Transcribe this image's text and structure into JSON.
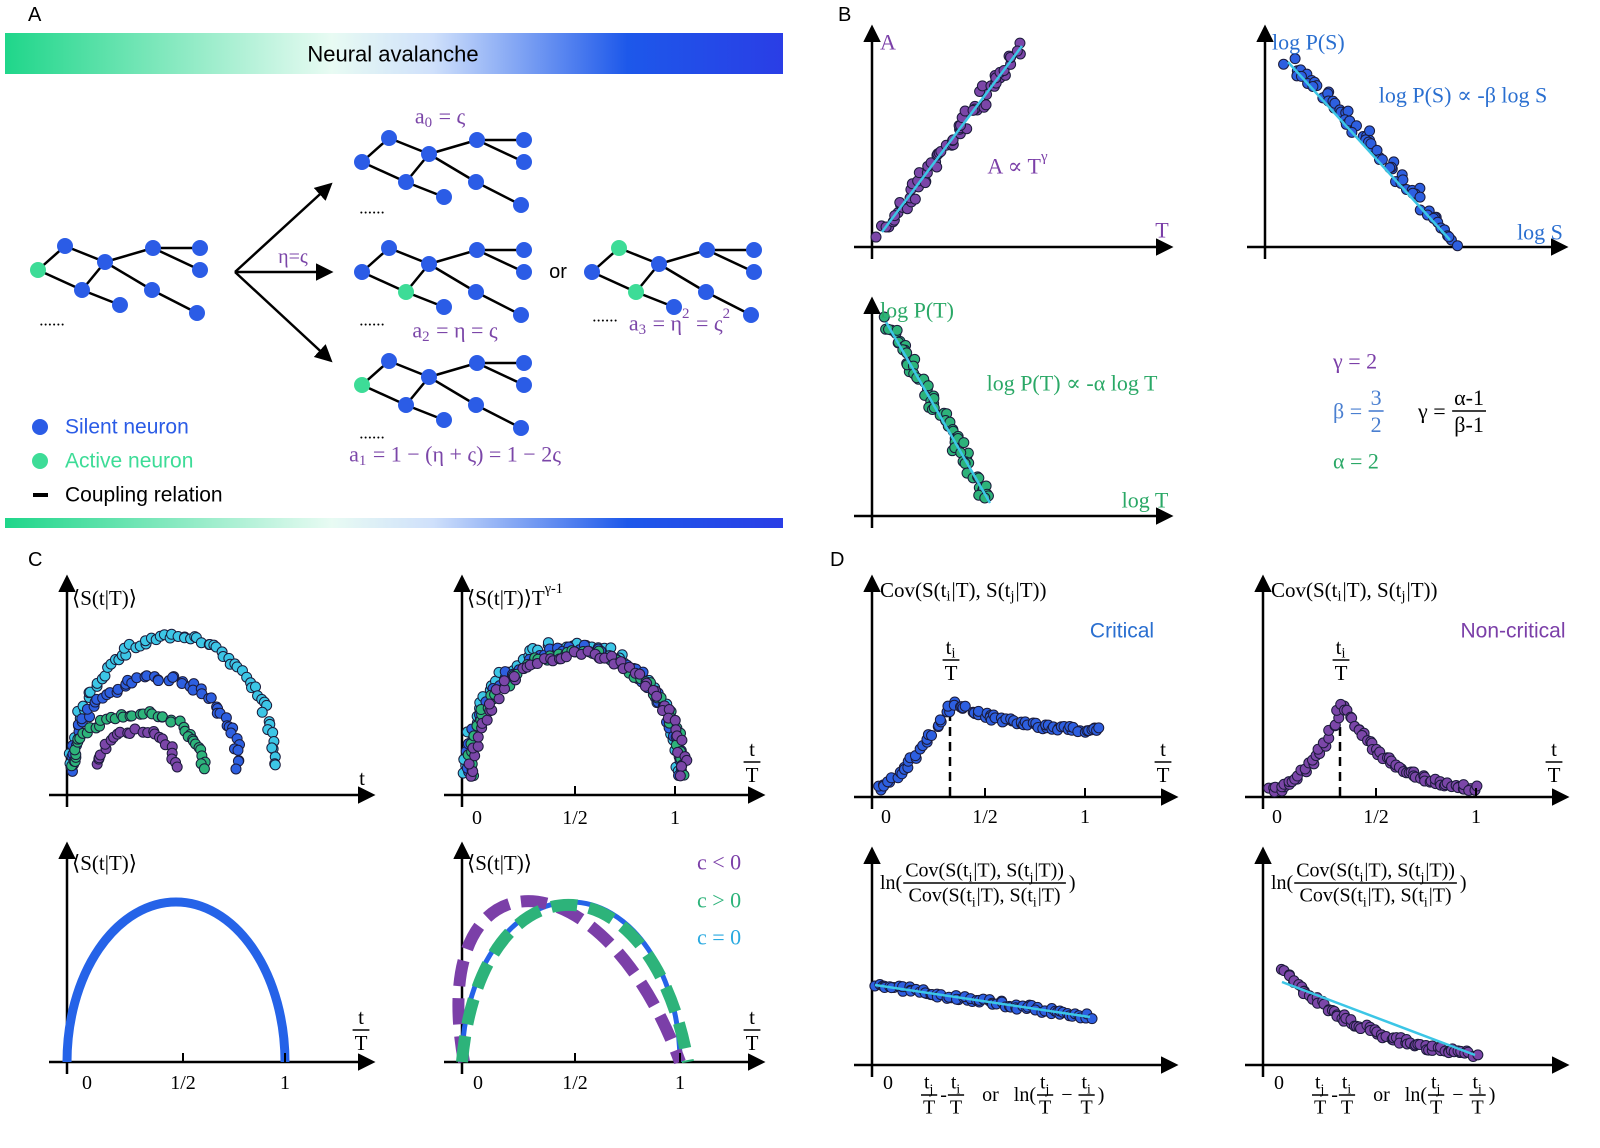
{
  "panel_a": {
    "label": "A",
    "banner": "Neural avalanche",
    "arrow_label": "η=ς",
    "or": "or",
    "ellipses": [
      "......",
      "......",
      "......",
      "......",
      "......"
    ],
    "equations": [
      [
        "a",
        {
          "sub": "0"
        },
        " = ς"
      ],
      [
        "a",
        {
          "sub": "2"
        },
        " = η = ς"
      ],
      [
        "a",
        {
          "sub": "3"
        },
        " = η",
        {
          "sup": "2"
        },
        " = ς",
        {
          "sup": "2"
        }
      ],
      [
        "a",
        {
          "sub": "1"
        },
        " = 1 − (η + ς) = 1 − 2ς"
      ]
    ],
    "legend": [
      {
        "label": "Silent neuron",
        "color": "#2b5ce6"
      },
      {
        "label": "Active neuron",
        "color": "#3ddc97"
      },
      {
        "label": "Coupling relation",
        "color": "#000000"
      }
    ]
  },
  "panel_b": {
    "label": "B",
    "plots": [
      {
        "y_label": [
          "A"
        ],
        "x_label": [
          "T"
        ],
        "formula": [
          "A ∝ T",
          {
            "sup": "γ"
          }
        ],
        "color": "#7b3fa8"
      },
      {
        "y_label": [
          "log P(S)"
        ],
        "x_label": [
          "log S"
        ],
        "formula": [
          "log P(S) ∝ -β log S"
        ],
        "color": "#2a6fd0"
      },
      {
        "y_label": [
          "log P(T)"
        ],
        "x_label": [
          "log T"
        ],
        "formula": [
          "log P(T) ∝ -α log T"
        ],
        "color": "#2aa866"
      }
    ],
    "relations": [
      {
        "text": [
          "γ = 2"
        ],
        "color": "#7b3fa8"
      },
      {
        "text": [
          "β = ",
          {
            "num": [
              "3"
            ],
            "den": [
              "2"
            ]
          }
        ],
        "color": "#4a7fd0"
      },
      {
        "text": [
          "α = 2"
        ],
        "color": "#2aa866"
      },
      {
        "text": [
          "γ = ",
          {
            "num": [
              "α-1"
            ],
            "den": [
              "β-1"
            ]
          }
        ],
        "color": "#000000"
      }
    ]
  },
  "panel_c": {
    "label": "C",
    "plots": [
      {
        "y_label": [
          "⟨S(t|T)⟩"
        ],
        "x_label": [
          "t"
        ]
      },
      {
        "y_label": [
          "⟨S(t|T)⟩T",
          {
            "sup": "γ-1"
          }
        ],
        "x_label": [
          {
            "num": [
              "t"
            ],
            "den": [
              "T"
            ]
          }
        ],
        "ticks": [
          "0",
          "1/2",
          "1"
        ]
      },
      {
        "y_label": [
          "⟨S(t|T)⟩"
        ],
        "x_label": [
          {
            "num": [
              "t"
            ],
            "den": [
              "T"
            ]
          }
        ],
        "ticks": [
          "0",
          "1/2",
          "1"
        ]
      },
      {
        "y_label": [
          "⟨S(t|T)⟩"
        ],
        "x_label": [
          {
            "num": [
              "t"
            ],
            "den": [
              "T"
            ]
          }
        ],
        "ticks": [
          "0",
          "1/2",
          "1"
        ],
        "legend": [
          {
            "label": "c < 0",
            "color": "#7b3fa8"
          },
          {
            "label": "c > 0",
            "color": "#2db37a"
          },
          {
            "label": "c = 0",
            "color": "#29a9e0"
          }
        ]
      }
    ]
  },
  "panel_d": {
    "label": "D",
    "plots": [
      {
        "y_label": [
          "Cov(S(t",
          {
            "sub": "i"
          },
          "|T), S(t",
          {
            "sub": "j"
          },
          "|T))"
        ],
        "annotation": "Critical",
        "annotation_color": "#2a6fd0",
        "marker": [
          {
            "num": [
              "t",
              {
                "sub": "i"
              }
            ],
            "den": [
              "T"
            ]
          }
        ],
        "x_label": [
          {
            "num": [
              "t"
            ],
            "den": [
              "T"
            ]
          }
        ],
        "ticks": [
          "0",
          "1/2",
          "1"
        ]
      },
      {
        "y_label": [
          "Cov(S(t",
          {
            "sub": "i"
          },
          "|T), S(t",
          {
            "sub": "j"
          },
          "|T))"
        ],
        "annotation": "Non-critical",
        "annotation_color": "#7b3fa8",
        "marker": [
          {
            "num": [
              "t",
              {
                "sub": "i"
              }
            ],
            "den": [
              "T"
            ]
          }
        ],
        "x_label": [
          {
            "num": [
              "t"
            ],
            "den": [
              "T"
            ]
          }
        ],
        "ticks": [
          "0",
          "1/2",
          "1"
        ]
      },
      {
        "y_label": [
          "ln(",
          {
            "num": [
              "Cov(S(t",
              {
                "sub": "i"
              },
              "|T), S(t",
              {
                "sub": "j"
              },
              "|T))"
            ],
            "den": [
              "Cov(S(t",
              {
                "sub": "i"
              },
              "|T), S(t",
              {
                "sub": "i"
              },
              "|T)"
            ]
          },
          ")"
        ],
        "x_label": [
          {
            "num": [
              "t",
              {
                "sub": "j"
              }
            ],
            "den": [
              "T"
            ]
          },
          "-",
          {
            "num": [
              "t",
              {
                "sub": "i"
              }
            ],
            "den": [
              "T"
            ]
          },
          "   or   ",
          "ln(",
          {
            "num": [
              "t",
              {
                "sub": "j"
              }
            ],
            "den": [
              "T"
            ]
          },
          " − ",
          {
            "num": [
              "t",
              {
                "sub": "i"
              }
            ],
            "den": [
              "T"
            ]
          },
          ")"
        ],
        "ticks": [
          "0"
        ]
      },
      {
        "y_label": [
          "ln(",
          {
            "num": [
              "Cov(S(t",
              {
                "sub": "i"
              },
              "|T), S(t",
              {
                "sub": "j"
              },
              "|T))"
            ],
            "den": [
              "Cov(S(t",
              {
                "sub": "i"
              },
              "|T), S(t",
              {
                "sub": "i"
              },
              "|T)"
            ]
          },
          ")"
        ],
        "x_label": [
          {
            "num": [
              "t",
              {
                "sub": "j"
              }
            ],
            "den": [
              "T"
            ]
          },
          "-",
          {
            "num": [
              "t",
              {
                "sub": "i"
              }
            ],
            "den": [
              "T"
            ]
          },
          "   or   ",
          "ln(",
          {
            "num": [
              "t",
              {
                "sub": "j"
              }
            ],
            "den": [
              "T"
            ]
          },
          " − ",
          {
            "num": [
              "t",
              {
                "sub": "i"
              }
            ],
            "den": [
              "T"
            ]
          },
          ")"
        ],
        "ticks": [
          "0"
        ]
      }
    ]
  }
}
